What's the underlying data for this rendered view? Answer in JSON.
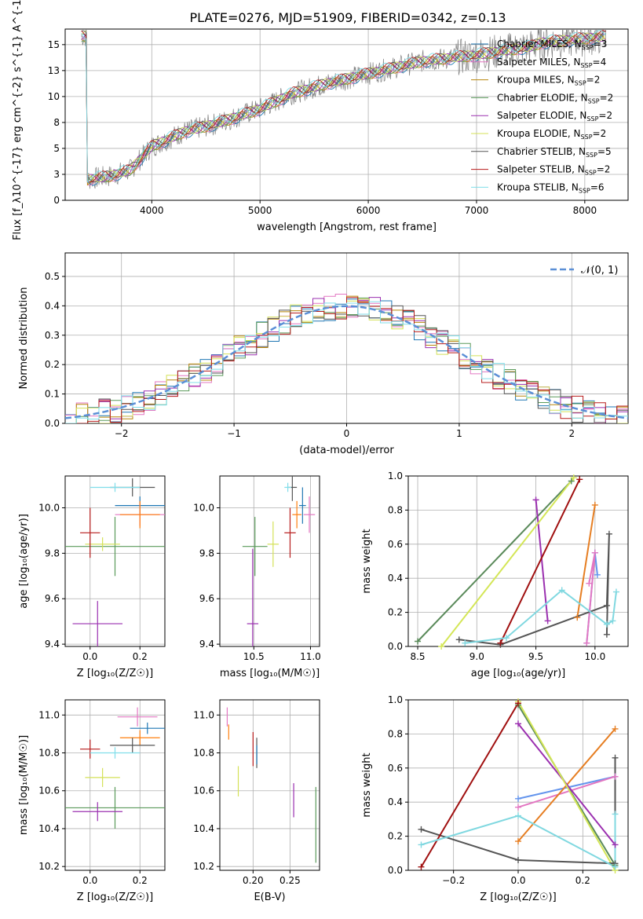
{
  "figure": {
    "title": "PLATE=0276, MJD=51909, FIBERID=0342, z=0.13"
  },
  "chart_data": [
    {
      "id": "spectrum",
      "type": "line",
      "xlabel": "wavelength [Angstrom, rest frame]",
      "ylabel": "Flux [f_λ10^{-17} erg cm^{-2} s^{-1} A^{-1}]",
      "xlim": [
        3200,
        8400
      ],
      "ylim": [
        0,
        16.5
      ],
      "xticks": [
        4000,
        5000,
        6000,
        7000,
        8000
      ],
      "yticks": [
        0.0,
        2.5,
        5.0,
        7.5,
        10.0,
        12.5,
        15.0
      ],
      "legend_position": "top-right",
      "series": [
        {
          "name": "Chabrier MILES, N_SSP=3",
          "color": "#1f77b4"
        },
        {
          "name": "Salpeter MILES, N_SSP=4",
          "color": "#e377c2"
        },
        {
          "name": "Kroupa MILES, N_SSP=2",
          "color": "#b8860b"
        },
        {
          "name": "Chabrier ELODIE, N_SSP=2",
          "color": "#5a9a5a"
        },
        {
          "name": "Salpeter ELODIE, N_SSP=2",
          "color": "#9b30b0"
        },
        {
          "name": "Kroupa ELODIE, N_SSP=2",
          "color": "#d4e157"
        },
        {
          "name": "Chabrier STELIB, N_SSP=5",
          "color": "#555555"
        },
        {
          "name": "Salpeter STELIB, N_SSP=2",
          "color": "#b71c1c"
        },
        {
          "name": "Kroupa STELIB, N_SSP=6",
          "color": "#80deea"
        }
      ],
      "continuum": [
        [
          3400,
          2.0
        ],
        [
          3600,
          2.3
        ],
        [
          3800,
          2.9
        ],
        [
          4000,
          5.2
        ],
        [
          4300,
          6.6
        ],
        [
          4600,
          7.4
        ],
        [
          5000,
          8.8
        ],
        [
          5300,
          10.3
        ],
        [
          5600,
          11.2
        ],
        [
          6000,
          12.2
        ],
        [
          6500,
          13.4
        ],
        [
          7000,
          14.0
        ],
        [
          7500,
          14.8
        ],
        [
          7600,
          15.2
        ],
        [
          8200,
          15.8
        ]
      ],
      "data_noise_color": "#808080"
    },
    {
      "id": "residuals",
      "type": "step",
      "xlabel": "(data-model)/error",
      "ylabel": "Normed distribution",
      "xlim": [
        -2.5,
        2.5
      ],
      "ylim": [
        0,
        0.58
      ],
      "xticks": [
        -2,
        -1,
        0,
        1,
        2
      ],
      "yticks": [
        0.0,
        0.1,
        0.2,
        0.3,
        0.4,
        0.5
      ],
      "legend": "𝒩(0, 1)",
      "legend_position": "top-right",
      "gauss_color": "#5b8fd6"
    },
    {
      "id": "age-vs-Z",
      "type": "errorbar",
      "xlabel": "Z [log₁₀(Z/Z☉)]",
      "ylabel": "age  [log₁₀(age/yr)]",
      "xlim": [
        -0.1,
        0.3
      ],
      "ylim": [
        9.39,
        10.14
      ],
      "xticks": [
        0.0,
        0.2
      ],
      "yticks": [
        9.4,
        9.6,
        9.8,
        10.0
      ],
      "points": [
        {
          "c": "#1f77b4",
          "x": 0.2,
          "xe": 0.1,
          "y": 10.01,
          "ye": 0.04
        },
        {
          "c": "#e377c2",
          "x": 0.2,
          "xe": 0.1,
          "y": 9.97,
          "ye": 0.05
        },
        {
          "c": "#ff7f0e",
          "x": 0.2,
          "xe": 0.08,
          "y": 9.97,
          "ye": 0.06
        },
        {
          "c": "#5a9a5a",
          "x": 0.1,
          "xe": 0.2,
          "y": 9.83,
          "ye": 0.13
        },
        {
          "c": "#9b30b0",
          "x": 0.03,
          "xe": 0.1,
          "y": 9.49,
          "ye": 0.1
        },
        {
          "c": "#d4e157",
          "x": 0.05,
          "xe": 0.07,
          "y": 9.84,
          "ye": 0.03
        },
        {
          "c": "#555555",
          "x": 0.17,
          "xe": 0.09,
          "y": 10.09,
          "ye": 0.04
        },
        {
          "c": "#b71c1c",
          "x": 0.0,
          "xe": 0.04,
          "y": 9.89,
          "ye": 0.11
        },
        {
          "c": "#80deea",
          "x": 0.1,
          "xe": 0.1,
          "y": 10.09,
          "ye": 0.02
        }
      ]
    },
    {
      "id": "age-vs-mass",
      "type": "errorbar",
      "xlabel": "mass [log₁₀(M/M☉)]",
      "ylabel": "",
      "xlim": [
        10.2,
        11.08
      ],
      "ylim": [
        9.39,
        10.14
      ],
      "xticks": [
        10.5,
        11.0
      ],
      "yticks": [
        9.4,
        9.6,
        9.8,
        10.0
      ],
      "points": [
        {
          "c": "#1f77b4",
          "x": 10.93,
          "xe": 0.03,
          "y": 10.01,
          "ye": 0.08
        },
        {
          "c": "#e377c2",
          "x": 10.99,
          "xe": 0.05,
          "y": 9.97,
          "ye": 0.08
        },
        {
          "c": "#ff7f0e",
          "x": 10.88,
          "xe": 0.04,
          "y": 9.97,
          "ye": 0.06
        },
        {
          "c": "#5a9a5a",
          "x": 10.51,
          "xe": 0.11,
          "y": 9.83,
          "ye": 0.13
        },
        {
          "c": "#9b30b0",
          "x": 10.49,
          "xe": 0.05,
          "y": 9.49,
          "ye": 0.33
        },
        {
          "c": "#d4e157",
          "x": 10.67,
          "xe": 0.05,
          "y": 9.84,
          "ye": 0.1
        },
        {
          "c": "#555555",
          "x": 10.84,
          "xe": 0.04,
          "y": 10.09,
          "ye": 0.06
        },
        {
          "c": "#b71c1c",
          "x": 10.82,
          "xe": 0.05,
          "y": 9.89,
          "ye": 0.11
        },
        {
          "c": "#80deea",
          "x": 10.8,
          "xe": 0.03,
          "y": 10.09,
          "ye": 0.02
        }
      ]
    },
    {
      "id": "mass-weight-vs-age",
      "type": "line",
      "xlabel": "age  [log₁₀(age/yr)]",
      "ylabel": "mass weight",
      "xlim": [
        8.42,
        10.28
      ],
      "ylim": [
        0,
        1
      ],
      "xticks": [
        8.5,
        9.0,
        9.5,
        10.0
      ],
      "yticks": [
        0.0,
        0.2,
        0.4,
        0.6,
        0.8,
        1.0
      ],
      "series": [
        {
          "c": "#6495ed",
          "x": [
            9.93,
            10.0,
            10.02
          ],
          "y": [
            0.02,
            0.55,
            0.42
          ]
        },
        {
          "c": "#e377c2",
          "x": [
            9.95,
            10.0,
            9.93
          ],
          "y": [
            0.37,
            0.55,
            0.02
          ]
        },
        {
          "c": "#e67e22",
          "x": [
            9.85,
            10.0
          ],
          "y": [
            0.17,
            0.83
          ]
        },
        {
          "c": "#5a8a5a",
          "x": [
            8.5,
            9.8
          ],
          "y": [
            0.03,
            0.97
          ]
        },
        {
          "c": "#9b30b0",
          "x": [
            9.5,
            9.6
          ],
          "y": [
            0.86,
            0.15
          ]
        },
        {
          "c": "#d4e657",
          "x": [
            8.7,
            9.82
          ],
          "y": [
            0.0,
            0.99
          ]
        },
        {
          "c": "#555555",
          "x": [
            8.85,
            9.2,
            10.1,
            10.12,
            10.1
          ],
          "y": [
            0.04,
            0.01,
            0.24,
            0.66,
            0.07
          ]
        },
        {
          "c": "#a01010",
          "x": [
            9.2,
            9.87
          ],
          "y": [
            0.02,
            0.98
          ]
        },
        {
          "c": "#80d8e0",
          "x": [
            8.9,
            9.25,
            9.72,
            10.1,
            10.15,
            10.18
          ],
          "y": [
            0.02,
            0.05,
            0.33,
            0.13,
            0.15,
            0.32
          ]
        }
      ]
    },
    {
      "id": "mass-vs-Z",
      "type": "errorbar",
      "xlabel": "Z [log₁₀(Z/Z☉)]",
      "ylabel": "mass [log₁₀(M/M☉)]",
      "xlim": [
        -0.1,
        0.3
      ],
      "ylim": [
        10.18,
        11.08
      ],
      "xticks": [
        0.0,
        0.2
      ],
      "yticks": [
        10.2,
        10.4,
        10.6,
        10.8,
        11.0
      ],
      "points": [
        {
          "c": "#1f77b4",
          "x": 0.23,
          "xe": 0.07,
          "y": 10.93,
          "ye": 0.03
        },
        {
          "c": "#e377c2",
          "x": 0.19,
          "xe": 0.08,
          "y": 10.99,
          "ye": 0.05
        },
        {
          "c": "#ff7f0e",
          "x": 0.2,
          "xe": 0.08,
          "y": 10.88,
          "ye": 0.04
        },
        {
          "c": "#5a9a5a",
          "x": 0.1,
          "xe": 0.2,
          "y": 10.51,
          "ye": 0.11
        },
        {
          "c": "#9b30b0",
          "x": 0.03,
          "xe": 0.1,
          "y": 10.49,
          "ye": 0.05
        },
        {
          "c": "#d4e157",
          "x": 0.05,
          "xe": 0.07,
          "y": 10.67,
          "ye": 0.05
        },
        {
          "c": "#555555",
          "x": 0.17,
          "xe": 0.09,
          "y": 10.84,
          "ye": 0.04
        },
        {
          "c": "#b71c1c",
          "x": 0.0,
          "xe": 0.04,
          "y": 10.82,
          "ye": 0.05
        },
        {
          "c": "#80deea",
          "x": 0.1,
          "xe": 0.1,
          "y": 10.8,
          "ye": 0.03
        }
      ]
    },
    {
      "id": "mass-vs-ebv",
      "type": "errorbar",
      "xlabel": "E(B-V)",
      "ylabel": "",
      "xlim": [
        0.155,
        0.29
      ],
      "ylim": [
        10.18,
        11.08
      ],
      "xticks": [
        0.2,
        0.25
      ],
      "yticks": [
        10.2,
        10.4,
        10.6,
        10.8,
        11.0
      ],
      "points": [
        {
          "c": "#e377c2",
          "x": 0.165,
          "xe": 0,
          "y": 10.99,
          "ye": 0.05
        },
        {
          "c": "#ff7f0e",
          "x": 0.167,
          "xe": 0,
          "y": 10.91,
          "ye": 0.04
        },
        {
          "c": "#d4e157",
          "x": 0.18,
          "xe": 0,
          "y": 10.65,
          "ye": 0.08
        },
        {
          "c": "#b71c1c",
          "x": 0.2,
          "xe": 0,
          "y": 10.82,
          "ye": 0.09
        },
        {
          "c": "#555555",
          "x": 0.205,
          "xe": 0,
          "y": 10.8,
          "ye": 0.08
        },
        {
          "c": "#1f77b4",
          "x": 0.205,
          "xe": 0,
          "y": 10.79,
          "ye": 0.05
        },
        {
          "c": "#9b30b0",
          "x": 0.255,
          "xe": 0,
          "y": 10.55,
          "ye": 0.09
        },
        {
          "c": "#5a9a5a",
          "x": 0.285,
          "xe": 0,
          "y": 10.42,
          "ye": 0.2
        }
      ]
    },
    {
      "id": "mass-weight-vs-Z",
      "type": "line",
      "xlabel": "Z [log₁₀(Z/Z☉)]",
      "ylabel": "mass weight",
      "xlim": [
        -0.34,
        0.34
      ],
      "ylim": [
        0,
        1
      ],
      "xticks": [
        -0.2,
        0.0,
        0.2
      ],
      "yticks": [
        0.0,
        0.2,
        0.4,
        0.6,
        0.8,
        1.0
      ],
      "series": [
        {
          "c": "#6495ed",
          "x": [
            0.0,
            0.3
          ],
          "y": [
            0.42,
            0.55
          ]
        },
        {
          "c": "#e377c2",
          "x": [
            0.0,
            0.3
          ],
          "y": [
            0.37,
            0.55
          ]
        },
        {
          "c": "#e67e22",
          "x": [
            0.0,
            0.3
          ],
          "y": [
            0.17,
            0.83
          ]
        },
        {
          "c": "#5a8a5a",
          "x": [
            0.0,
            0.3
          ],
          "y": [
            0.97,
            0.03
          ]
        },
        {
          "c": "#9b30b0",
          "x": [
            0.0,
            0.3
          ],
          "y": [
            0.86,
            0.15
          ]
        },
        {
          "c": "#d4e657",
          "x": [
            0.0,
            0.3
          ],
          "y": [
            0.99,
            0.0
          ]
        },
        {
          "c": "#555555",
          "x": [
            -0.3,
            0.0,
            0.3,
            0.3
          ],
          "y": [
            0.24,
            0.06,
            0.04,
            0.66
          ]
        },
        {
          "c": "#a01010",
          "x": [
            -0.3,
            0.0
          ],
          "y": [
            0.02,
            0.98
          ]
        },
        {
          "c": "#80d8e0",
          "x": [
            -0.3,
            0.0,
            0.3,
            0.3
          ],
          "y": [
            0.15,
            0.32,
            0.02,
            0.33
          ]
        }
      ]
    }
  ]
}
